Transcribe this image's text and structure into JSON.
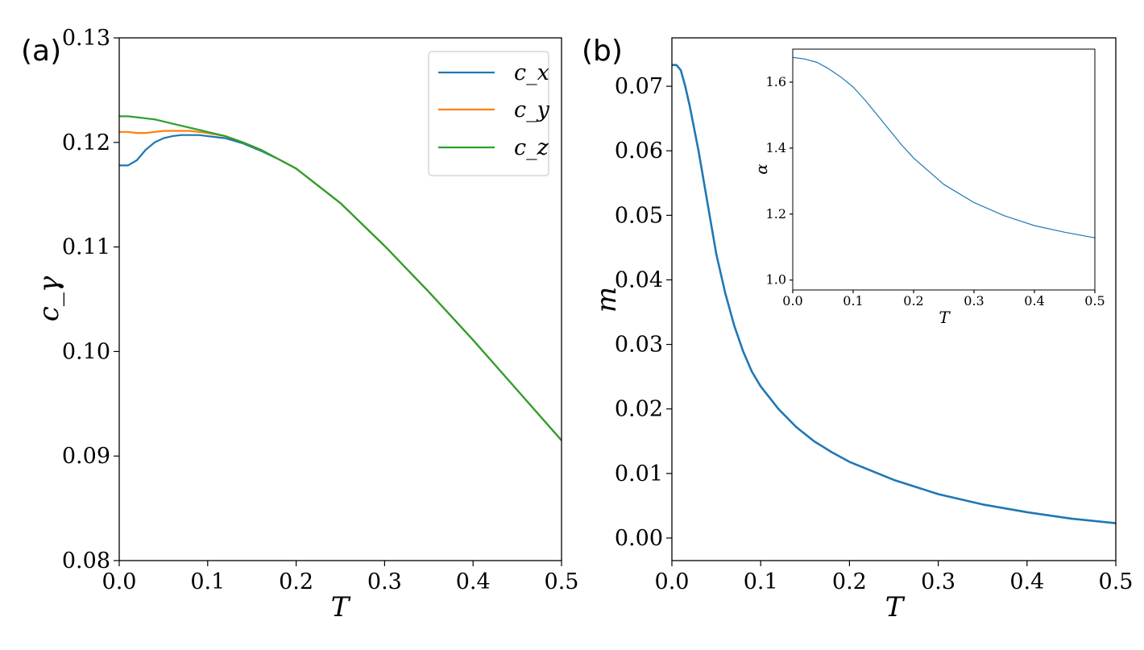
{
  "chart_data": [
    {
      "panel_label": "(a)",
      "type": "line",
      "xlabel": "T",
      "ylabel": "c_γ",
      "xlim": [
        0,
        0.5
      ],
      "ylim": [
        0.08,
        0.13
      ],
      "xticks": [
        "0.0",
        "0.1",
        "0.2",
        "0.3",
        "0.4",
        "0.5"
      ],
      "yticks": [
        "0.08",
        "0.09",
        "0.10",
        "0.11",
        "0.12",
        "0.13"
      ],
      "legend": {
        "placement": "top-right",
        "entries": [
          "c_x",
          "c_y",
          "c_z"
        ]
      },
      "series": [
        {
          "name": "c_x",
          "color": "#1f77b4",
          "x": [
            0,
            0.01,
            0.02,
            0.03,
            0.04,
            0.05,
            0.06,
            0.07,
            0.08,
            0.09,
            0.1,
            0.12,
            0.14,
            0.16,
            0.18,
            0.2,
            0.25,
            0.3,
            0.35,
            0.4,
            0.45,
            0.5
          ],
          "y": [
            0.1178,
            0.1178,
            0.1183,
            0.1193,
            0.12,
            0.1204,
            0.1206,
            0.1207,
            0.1207,
            0.1207,
            0.1206,
            0.1204,
            0.1199,
            0.1192,
            0.1184,
            0.1175,
            0.1142,
            0.1101,
            0.1057,
            0.1011,
            0.0963,
            0.0915
          ]
        },
        {
          "name": "c_y",
          "color": "#ff7f0e",
          "x": [
            0,
            0.01,
            0.02,
            0.03,
            0.04,
            0.05,
            0.06,
            0.07,
            0.08,
            0.09,
            0.1,
            0.12,
            0.14,
            0.16,
            0.18,
            0.2,
            0.25,
            0.3,
            0.35,
            0.4,
            0.45,
            0.5
          ],
          "y": [
            0.121,
            0.121,
            0.1209,
            0.1209,
            0.121,
            0.1211,
            0.1211,
            0.1211,
            0.1211,
            0.121,
            0.1209,
            0.1206,
            0.12,
            0.1193,
            0.1184,
            0.1175,
            0.1142,
            0.1101,
            0.1057,
            0.1011,
            0.0963,
            0.0915
          ]
        },
        {
          "name": "c_z",
          "color": "#2ca02c",
          "x": [
            0,
            0.01,
            0.02,
            0.03,
            0.04,
            0.05,
            0.06,
            0.07,
            0.08,
            0.09,
            0.1,
            0.12,
            0.14,
            0.16,
            0.18,
            0.2,
            0.25,
            0.3,
            0.35,
            0.4,
            0.45,
            0.5
          ],
          "y": [
            0.1225,
            0.1225,
            0.1224,
            0.1223,
            0.1222,
            0.122,
            0.1218,
            0.1216,
            0.1214,
            0.1212,
            0.121,
            0.1206,
            0.12,
            0.1193,
            0.1184,
            0.1175,
            0.1142,
            0.1101,
            0.1057,
            0.1011,
            0.0963,
            0.0915
          ]
        }
      ]
    },
    {
      "panel_label": "(b)",
      "type": "line",
      "xlabel": "T",
      "ylabel": "m",
      "xlim": [
        0,
        0.5
      ],
      "ylim": [
        -0.0035,
        0.0775
      ],
      "xticks": [
        "0.0",
        "0.1",
        "0.2",
        "0.3",
        "0.4",
        "0.5"
      ],
      "yticks": [
        "0.00",
        "0.01",
        "0.02",
        "0.03",
        "0.04",
        "0.05",
        "0.06",
        "0.07"
      ],
      "series": [
        {
          "color": "#1f77b4",
          "x": [
            0,
            0.005,
            0.01,
            0.015,
            0.02,
            0.03,
            0.04,
            0.05,
            0.06,
            0.07,
            0.08,
            0.09,
            0.1,
            0.12,
            0.14,
            0.16,
            0.18,
            0.2,
            0.25,
            0.3,
            0.35,
            0.4,
            0.45,
            0.5
          ],
          "y": [
            0.0733,
            0.0733,
            0.0725,
            0.07,
            0.067,
            0.06,
            0.052,
            0.044,
            0.038,
            0.033,
            0.029,
            0.0258,
            0.0235,
            0.02,
            0.0172,
            0.015,
            0.0133,
            0.0118,
            0.009,
            0.0068,
            0.0052,
            0.004,
            0.003,
            0.0023
          ]
        }
      ]
    },
    {
      "panel_label": "",
      "type": "line",
      "inset_of": "(b)",
      "xlabel": "T",
      "ylabel": "α",
      "xlim": [
        0,
        0.5
      ],
      "ylim": [
        0.97,
        1.7
      ],
      "xticks": [
        "0.0",
        "0.1",
        "0.2",
        "0.3",
        "0.4",
        "0.5"
      ],
      "yticks": [
        "1.0",
        "1.2",
        "1.4",
        "1.6"
      ],
      "series": [
        {
          "color": "#1f77b4",
          "x": [
            0,
            0.02,
            0.04,
            0.06,
            0.08,
            0.1,
            0.12,
            0.14,
            0.16,
            0.18,
            0.2,
            0.25,
            0.3,
            0.35,
            0.4,
            0.45,
            0.5
          ],
          "y": [
            1.675,
            1.67,
            1.66,
            1.64,
            1.615,
            1.585,
            1.545,
            1.5,
            1.455,
            1.41,
            1.37,
            1.29,
            1.235,
            1.195,
            1.165,
            1.145,
            1.128
          ]
        }
      ]
    }
  ]
}
